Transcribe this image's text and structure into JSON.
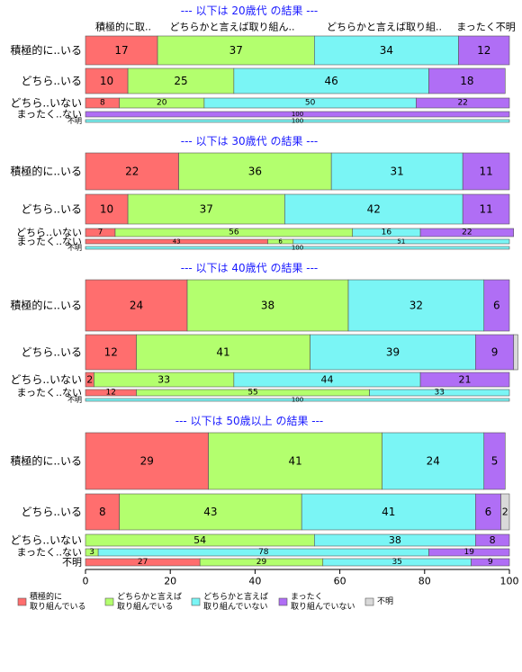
{
  "colors": {
    "c1": "#ff6e6e",
    "c2": "#b3ff6e",
    "c3": "#7af5f5",
    "c4": "#b06ef5",
    "c5": "#d9d9d9",
    "title": "#1a1aff"
  },
  "column_headers": [
    "積極的に取..",
    "どちらかと言えば取り組ん..",
    "どちらかと言えば取り組..",
    "まったく不明"
  ],
  "chart_data": {
    "type": "bar",
    "orientation": "horizontal",
    "stacked": true,
    "xlim": [
      0,
      100
    ],
    "xticks": [
      0,
      20,
      40,
      60,
      80,
      100
    ],
    "grid": false,
    "legend_position": "bottom-left",
    "legend": [
      "積極的に\n取り組んでいる",
      "どちらかと言えば\n取り組んでいる",
      "どちらかと言えば\n取り組んでいない",
      "まったく\n取り組んでいない",
      "不明"
    ],
    "panels": [
      {
        "title": "--- 以下は 20歳代 の結果 ---",
        "rows": [
          {
            "label": "積極的に..いる",
            "values": [
              17,
              37,
              34,
              12,
              0
            ]
          },
          {
            "label": "どちら..いる",
            "values": [
              10,
              25,
              46,
              18,
              0
            ]
          },
          {
            "label": "どちら..いない",
            "values": [
              8,
              20,
              50,
              22,
              0
            ]
          },
          {
            "label": "まったく..ない",
            "values": [
              0,
              0,
              0,
              100,
              0
            ]
          },
          {
            "label": "不明",
            "values": [
              0,
              0,
              100,
              0,
              0
            ]
          }
        ]
      },
      {
        "title": "--- 以下は 30歳代 の結果 ---",
        "rows": [
          {
            "label": "積極的に..いる",
            "values": [
              22,
              36,
              31,
              11,
              0
            ]
          },
          {
            "label": "どちら..いる",
            "values": [
              10,
              37,
              42,
              11,
              0
            ]
          },
          {
            "label": "どちら..いない",
            "values": [
              7,
              56,
              16,
              22,
              0
            ]
          },
          {
            "label": "まったく..ない",
            "values": [
              43,
              6,
              51,
              0,
              0
            ]
          },
          {
            "label": "不明",
            "values": [
              0,
              0,
              100,
              0,
              0
            ]
          }
        ]
      },
      {
        "title": "--- 以下は 40歳代 の結果 ---",
        "rows": [
          {
            "label": "積極的に..いる",
            "values": [
              24,
              38,
              32,
              6,
              0
            ]
          },
          {
            "label": "どちら..いる",
            "values": [
              12,
              41,
              39,
              9,
              1
            ]
          },
          {
            "label": "どちら..いない",
            "values": [
              2,
              33,
              44,
              21,
              0
            ]
          },
          {
            "label": "まったく..ない",
            "values": [
              12,
              55,
              33,
              0,
              0
            ]
          },
          {
            "label": "不明",
            "values": [
              0,
              0,
              100,
              0,
              0
            ]
          }
        ]
      },
      {
        "title": "--- 以下は 50歳以上 の結果 ---",
        "rows": [
          {
            "label": "積極的に..いる",
            "values": [
              29,
              41,
              24,
              5,
              0
            ]
          },
          {
            "label": "どちら..いる",
            "values": [
              8,
              43,
              41,
              6,
              2
            ]
          },
          {
            "label": "どちら..いない",
            "values": [
              0,
              54,
              38,
              8,
              0
            ]
          },
          {
            "label": "まったく..ない",
            "values": [
              0,
              3,
              78,
              19,
              0
            ]
          },
          {
            "label": "不明",
            "values": [
              27,
              29,
              35,
              9,
              0
            ]
          }
        ]
      }
    ]
  }
}
